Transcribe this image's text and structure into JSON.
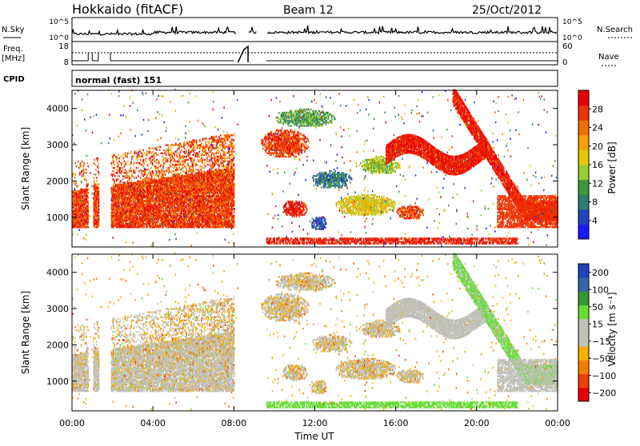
{
  "header": {
    "station": "Hokkaido (fitACF)",
    "beam": "Beam 12",
    "date": "25/Oct/2012"
  },
  "strips": {
    "nsky_label": "N.Sky",
    "nsky_ticks": [
      "10^5",
      "10^0"
    ],
    "nsearch_label": "N.Search",
    "freq_label_1": "Freq.",
    "freq_label_2": "[MHz]",
    "freq_ticks": [
      "18",
      "8"
    ],
    "nave_ticks": [
      "60",
      "0"
    ],
    "nave_label": "Nave",
    "cpid_label": "CPID",
    "cpid_value": "normal (fast) 151"
  },
  "colors": {
    "power_scale": [
      "#1a1aff",
      "#2244bb",
      "#2e7d6e",
      "#3a9a3a",
      "#9acd32",
      "#e6c800",
      "#f5a000",
      "#f07000",
      "#ee3300",
      "#e60000"
    ],
    "velocity_scale": [
      "#e60000",
      "#f04000",
      "#f58000",
      "#f5b000",
      "#c0c0b8",
      "#c0c0b8",
      "#66dd33",
      "#339933",
      "#3366aa",
      "#2244bb"
    ],
    "ground_scatter": "#c0c0b8"
  },
  "chart_data": [
    {
      "type": "heatmap",
      "name": "power-panel",
      "xlabel": "",
      "ylabel": "Slant Range [km]",
      "y_ticks": [
        "1000",
        "2000",
        "3000",
        "4000"
      ],
      "ylim": [
        180,
        4500
      ],
      "colorbar_label": "Power [dB]",
      "colorbar_ticks": [
        "4",
        "8",
        "12",
        "16",
        "20",
        "24",
        "28"
      ],
      "colorbar_range": [
        0,
        32
      ]
    },
    {
      "type": "heatmap",
      "name": "velocity-panel",
      "xlabel": "Time UT",
      "ylabel": "Slant Range [km]",
      "y_ticks": [
        "1000",
        "2000",
        "3000",
        "4000"
      ],
      "ylim": [
        180,
        4500
      ],
      "x_ticks": [
        "00:00",
        "04:00",
        "08:00",
        "12:00",
        "16:00",
        "20:00",
        "00:00"
      ],
      "xlim": [
        0,
        24
      ],
      "colorbar_label": "Velocity [m s⁻¹]",
      "colorbar_ticks": [
        "200",
        "100",
        "50",
        "15",
        "−15",
        "−50",
        "−100",
        "−200"
      ]
    }
  ]
}
